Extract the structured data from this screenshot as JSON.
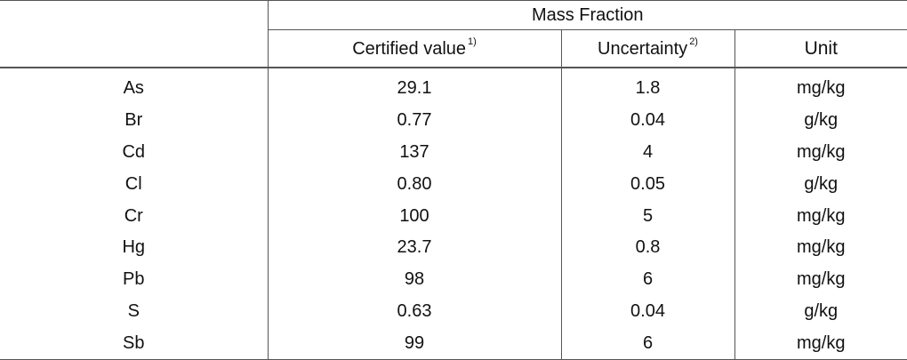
{
  "table": {
    "group_header": "Mass Fraction",
    "columns": {
      "certified_value": "Certified value",
      "certified_value_note": "1)",
      "uncertainty": "Uncertainty",
      "uncertainty_note": "2)",
      "unit": "Unit"
    },
    "rows": [
      {
        "element": "As",
        "value": "29.1",
        "uncertainty": "1.8",
        "unit": "mg/kg"
      },
      {
        "element": "Br",
        "value": "0.77",
        "uncertainty": "0.04",
        "unit": "g/kg"
      },
      {
        "element": "Cd",
        "value": "137",
        "uncertainty": "4",
        "unit": "mg/kg"
      },
      {
        "element": "Cl",
        "value": "0.80",
        "uncertainty": "0.05",
        "unit": "g/kg"
      },
      {
        "element": "Cr",
        "value": "100",
        "uncertainty": "5",
        "unit": "mg/kg"
      },
      {
        "element": "Hg",
        "value": "23.7",
        "uncertainty": "0.8",
        "unit": "mg/kg"
      },
      {
        "element": "Pb",
        "value": "98",
        "uncertainty": "6",
        "unit": "mg/kg"
      },
      {
        "element": "S",
        "value": "0.63",
        "uncertainty": "0.04",
        "unit": "g/kg"
      },
      {
        "element": "Sb",
        "value": "99",
        "uncertainty": "6",
        "unit": "mg/kg"
      }
    ]
  }
}
